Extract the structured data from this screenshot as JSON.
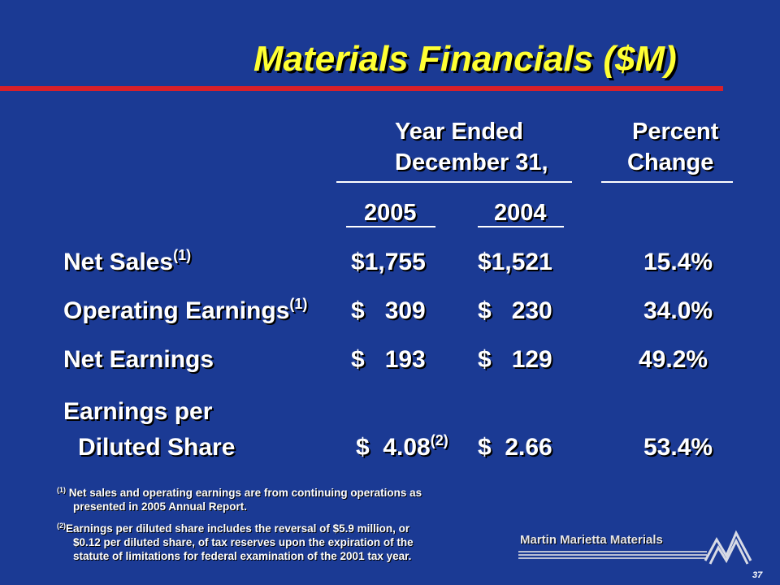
{
  "title": "Materials Financials ($M)",
  "header": {
    "year_ended_line1": "Year Ended",
    "year_ended_line2": "December 31,",
    "percent_line1": "Percent",
    "percent_line2": "Change",
    "col_2005": "2005",
    "col_2004": "2004"
  },
  "rows": [
    {
      "label": "Net Sales",
      "label_sup": "(1)",
      "v2005": "$1,755",
      "v2005_sup": "",
      "v2004": "$1,521",
      "change": "15.4%"
    },
    {
      "label": "Operating Earnings",
      "label_sup": "(1)",
      "v2005": "$   309",
      "v2005_sup": "",
      "v2004": "$   230",
      "change": "34.0%"
    },
    {
      "label": "Net Earnings",
      "label_sup": "",
      "v2005": "$   193",
      "v2005_sup": "",
      "v2004": "$   129",
      "change": "49.2%"
    },
    {
      "label_line1": "Earnings per",
      "label_line2": "Diluted Share",
      "v2005": "$  4.08",
      "v2005_sup": "(2)",
      "v2004": "$  2.66",
      "change": "53.4%"
    }
  ],
  "footnotes": [
    {
      "marker": "(1)",
      "line1": " Net sales and operating earnings are from continuing operations as",
      "line2": "presented in 2005 Annual Report."
    },
    {
      "marker": "(2)",
      "line1": "Earnings per diluted share includes the reversal of $5.9 million, or",
      "line2": "$0.12 per diluted share, of tax reserves upon the expiration of the",
      "line3": "statute of limitations for federal examination of the 2001 tax year."
    }
  ],
  "logo": {
    "text": "Martin Marietta Materials",
    "icon": "mountain-logo-icon"
  },
  "page_number": "37",
  "colors": {
    "background": "#1b3a94",
    "title": "#ffff33",
    "accent_rule": "#d8202a",
    "text": "#ffffff"
  }
}
